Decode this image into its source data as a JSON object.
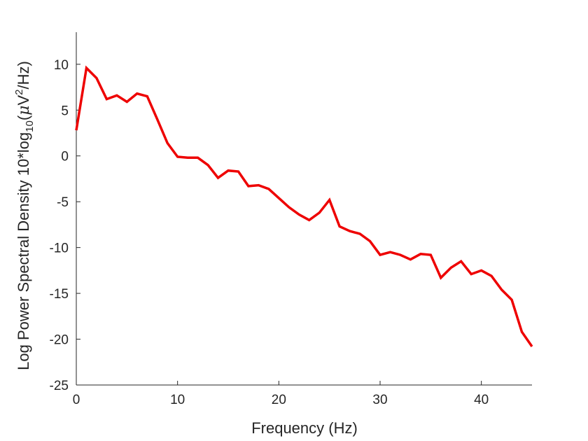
{
  "chart_data": {
    "type": "line",
    "title": "",
    "xlabel": "Frequency (Hz)",
    "ylabel": {
      "prefix": "Log Power Spectral Density 10*log",
      "sub": "10",
      "mid": "(",
      "mu": "μ",
      "unit_v": "V",
      "sup": "2",
      "suffix": "/Hz)"
    },
    "xlim": [
      0,
      45
    ],
    "ylim": [
      -25,
      13.5
    ],
    "xticks": [
      0,
      10,
      20,
      30,
      40
    ],
    "yticks": [
      -25,
      -20,
      -15,
      -10,
      -5,
      0,
      5,
      10
    ],
    "grid": false,
    "color": "#ee0000",
    "series": [
      {
        "x": [
          0,
          1,
          2,
          3,
          4,
          5,
          6,
          7,
          8,
          9,
          10,
          11,
          12,
          13,
          14,
          15,
          16,
          17,
          18,
          19,
          20,
          21,
          22,
          23,
          24,
          25,
          26,
          27,
          28,
          29,
          30,
          31,
          32,
          33,
          34,
          35,
          36,
          37,
          38,
          39,
          40,
          41,
          42,
          43,
          44,
          45
        ],
        "values": [
          2.8,
          9.6,
          8.5,
          6.2,
          6.6,
          5.9,
          6.8,
          6.5,
          4.0,
          1.4,
          -0.1,
          -0.2,
          -0.2,
          -1.0,
          -2.4,
          -1.6,
          -1.7,
          -3.3,
          -3.2,
          -3.6,
          -4.6,
          -5.6,
          -6.4,
          -7.0,
          -6.2,
          -4.8,
          -7.7,
          -8.2,
          -8.5,
          -9.3,
          -10.8,
          -10.5,
          -10.8,
          -11.3,
          -10.7,
          -10.8,
          -13.3,
          -12.2,
          -11.5,
          -12.9,
          -12.5,
          -13.1,
          -14.6,
          -15.7,
          -19.2,
          -20.8
        ]
      }
    ]
  }
}
